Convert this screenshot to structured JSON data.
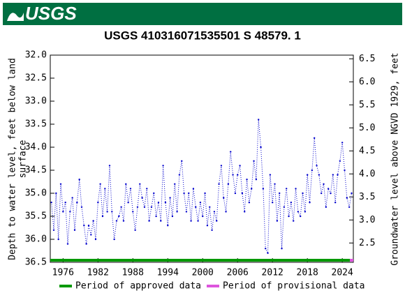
{
  "header": {
    "logo": "USGS"
  },
  "chart_data": {
    "type": "line",
    "title": "USGS 410316071535501 S 48579. 1",
    "ylabel": [
      "Depth to water level, feet below land",
      "surface"
    ],
    "y2label": "Groundwater level above NGVD 1929, feet",
    "xlim": [
      1973.8,
      2025.9
    ],
    "xticks": [
      1976,
      1982,
      1988,
      1994,
      2000,
      2006,
      2012,
      2018,
      2024
    ],
    "ylim": [
      32.0,
      36.5
    ],
    "y_inverted": true,
    "yticks": [
      {
        "value": 32.0,
        "label": "32.0"
      },
      32.5,
      {
        "value": 33.0,
        "label": "33.0"
      },
      33.5,
      {
        "value": 34.0,
        "label": "34.0"
      },
      34.5,
      {
        "value": 35.0,
        "label": "35.0"
      },
      35.5,
      {
        "value": 36.0,
        "label": "36.0"
      },
      36.5
    ],
    "y2lim": [
      2.08,
      6.58
    ],
    "y2ticks": [
      2.5,
      {
        "value": 3.0,
        "label": "3.0"
      },
      3.5,
      {
        "value": 4.0,
        "label": "4.0"
      },
      4.5,
      {
        "value": 5.0,
        "label": "5.0"
      },
      5.5,
      {
        "value": 6.0,
        "label": "6.0"
      },
      6.5
    ],
    "series": [
      {
        "name": "Depth to water level",
        "color": "#0000cc",
        "x": [
          1974.0,
          1974.4,
          1974.8,
          1975.2,
          1975.6,
          1976.0,
          1976.4,
          1976.8,
          1977.2,
          1977.6,
          1978.0,
          1978.4,
          1978.8,
          1979.2,
          1979.6,
          1980.0,
          1980.4,
          1980.8,
          1981.2,
          1981.6,
          1982.0,
          1982.4,
          1982.8,
          1983.2,
          1983.6,
          1984.0,
          1984.4,
          1984.8,
          1985.2,
          1985.6,
          1986.0,
          1986.4,
          1986.8,
          1987.2,
          1987.6,
          1988.0,
          1988.4,
          1988.8,
          1989.2,
          1989.6,
          1990.0,
          1990.4,
          1990.8,
          1991.2,
          1991.6,
          1992.0,
          1992.4,
          1992.8,
          1993.2,
          1993.6,
          1994.0,
          1994.4,
          1994.8,
          1995.2,
          1995.6,
          1996.0,
          1996.4,
          1996.8,
          1997.2,
          1997.6,
          1998.0,
          1998.4,
          1998.8,
          1999.2,
          1999.6,
          2000.0,
          2000.4,
          2000.8,
          2001.2,
          2001.6,
          2002.0,
          2002.4,
          2002.8,
          2003.2,
          2003.6,
          2004.0,
          2004.4,
          2004.8,
          2005.2,
          2005.6,
          2006.0,
          2006.4,
          2006.8,
          2007.2,
          2007.6,
          2008.0,
          2008.4,
          2008.8,
          2009.2,
          2009.6,
          2010.0,
          2010.4,
          2010.8,
          2011.2,
          2011.6,
          2012.0,
          2012.4,
          2012.8,
          2013.2,
          2013.6,
          2014.0,
          2014.4,
          2014.8,
          2015.2,
          2015.6,
          2016.0,
          2016.4,
          2016.8,
          2017.2,
          2017.6,
          2018.0,
          2018.4,
          2018.8,
          2019.2,
          2019.6,
          2020.0,
          2020.4,
          2020.8,
          2021.2,
          2021.6,
          2022.0,
          2022.4,
          2022.8,
          2023.2,
          2023.6,
          2024.0,
          2024.4,
          2024.8,
          2025.2,
          2025.6
        ],
        "values": [
          35.2,
          35.8,
          35.0,
          36.0,
          34.8,
          35.4,
          35.2,
          36.1,
          35.4,
          35.1,
          35.8,
          35.2,
          34.7,
          35.3,
          35.7,
          36.1,
          35.7,
          35.9,
          35.6,
          36.0,
          35.2,
          34.8,
          35.5,
          34.9,
          35.4,
          34.4,
          35.4,
          36.0,
          35.6,
          35.5,
          35.3,
          35.6,
          34.8,
          35.2,
          34.9,
          35.4,
          35.8,
          35.3,
          34.8,
          35.1,
          35.3,
          34.9,
          35.6,
          35.3,
          35.0,
          35.5,
          35.2,
          35.6,
          34.4,
          35.2,
          35.7,
          35.1,
          35.5,
          34.8,
          35.4,
          34.6,
          34.3,
          35.0,
          35.4,
          35.0,
          35.6,
          34.9,
          35.3,
          35.6,
          35.2,
          35.5,
          35.0,
          35.7,
          35.3,
          35.8,
          35.4,
          35.6,
          34.8,
          34.4,
          35.1,
          35.4,
          34.8,
          34.1,
          34.6,
          35.0,
          34.6,
          34.4,
          35.0,
          35.4,
          34.7,
          35.2,
          34.9,
          34.3,
          34.7,
          33.4,
          34.0,
          34.9,
          36.2,
          36.3,
          34.6,
          35.2,
          34.8,
          35.6,
          35.0,
          36.2,
          35.3,
          34.9,
          35.5,
          35.2,
          35.6,
          34.9,
          35.4,
          35.5,
          35.0,
          35.4,
          34.6,
          35.2,
          34.5,
          33.8,
          34.4,
          34.6,
          35.0,
          34.8,
          35.3,
          34.9,
          35.0,
          34.6,
          35.2,
          34.6,
          34.3,
          33.9,
          34.5,
          35.1,
          35.3,
          35.0
        ]
      }
    ],
    "periods": [
      {
        "name": "Period of approved data",
        "color": "#009900",
        "start": 1973.8,
        "end": 2025.3
      },
      {
        "name": "Period of provisional data",
        "color": "#dd55dd",
        "start": 2025.3,
        "end": 2025.9
      }
    ]
  }
}
